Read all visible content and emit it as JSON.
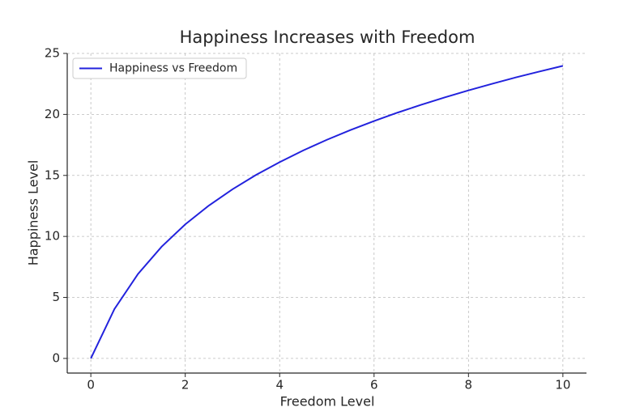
{
  "chart_data": {
    "type": "line",
    "title": "Happiness Increases with Freedom",
    "xlabel": "Freedom Level",
    "ylabel": "Happiness Level",
    "x": [
      0,
      0.5,
      1,
      1.5,
      2,
      2.5,
      3,
      3.5,
      4,
      4.5,
      5,
      5.5,
      6,
      6.5,
      7,
      7.5,
      8,
      8.5,
      9,
      9.5,
      10
    ],
    "series": [
      {
        "name": "Happiness vs Freedom",
        "color": "#2222dd",
        "values": [
          0,
          4.05,
          6.93,
          9.16,
          10.99,
          12.53,
          13.86,
          15.04,
          16.09,
          17.05,
          17.92,
          18.72,
          19.46,
          20.15,
          20.79,
          21.4,
          21.97,
          22.51,
          23.03,
          23.51,
          23.98
        ]
      }
    ],
    "xlim": [
      -0.5,
      10.5
    ],
    "ylim": [
      -1.2,
      25
    ],
    "xticks": [
      0,
      2,
      4,
      6,
      8,
      10
    ],
    "yticks": [
      0,
      5,
      10,
      15,
      20,
      25
    ],
    "grid": true,
    "legend": "upper left"
  }
}
